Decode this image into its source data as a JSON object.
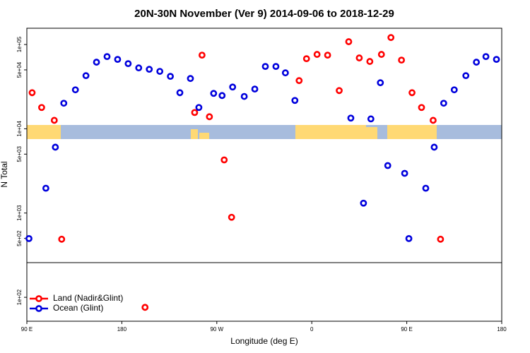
{
  "chart_data": {
    "type": "scatter",
    "title": "20N-30N November (Ver 9)   2014-09-06 to 2018-12-29",
    "x_label": "Longitude (deg E)",
    "y_label": "N Total",
    "log_y": true,
    "legend": "bottom-left",
    "xlim": [
      90,
      540
    ],
    "xticks": [
      {
        "value": 90,
        "label": "90 E"
      },
      {
        "value": 180,
        "label": "180"
      },
      {
        "value": 270,
        "label": "90 W"
      },
      {
        "value": 360,
        "label": "0"
      },
      {
        "value": 450,
        "label": "90 E"
      },
      {
        "value": 540,
        "label": "180"
      }
    ],
    "ylim": [
      52,
      156000
    ],
    "yticks": [
      {
        "value": 100,
        "label": "1e+02"
      },
      {
        "value": 500,
        "label": "5e+02"
      },
      {
        "value": 1000,
        "label": "1e+03"
      },
      {
        "value": 5000,
        "label": "5e+03"
      },
      {
        "value": 10000,
        "label": "1e+04"
      },
      {
        "value": 50000,
        "label": "5e+04"
      },
      {
        "value": 100000,
        "label": "1e+05"
      }
    ],
    "series": [
      {
        "name": "Land (Nadir&Glint)",
        "color": "#ff0000",
        "x": [
          95,
          104,
          116,
          123,
          202,
          249,
          256,
          263,
          277,
          284,
          348,
          355,
          365,
          375,
          386,
          395,
          405,
          415,
          426,
          435,
          445,
          455,
          464,
          475,
          482
        ],
        "values": [
          26800,
          17900,
          12600,
          489,
          76,
          15600,
          74800,
          13900,
          4270,
          891,
          37300,
          67900,
          76300,
          74800,
          28400,
          108000,
          69300,
          62900,
          76300,
          121000,
          65300,
          26800,
          17900,
          12600,
          489
        ]
      },
      {
        "name": "Ocean (Glint)",
        "color": "#0000dd",
        "x": [
          92,
          108,
          117,
          125,
          136,
          146,
          156,
          166,
          176,
          186,
          196,
          206,
          216,
          226,
          235,
          245,
          253,
          267,
          275,
          285,
          296,
          306,
          316,
          326,
          335,
          344,
          397,
          409,
          416,
          425,
          432,
          448,
          452,
          468,
          476,
          485,
          495,
          506,
          516,
          525,
          535
        ],
        "values": [
          498,
          1970,
          6050,
          20100,
          29000,
          42700,
          61700,
          71900,
          66600,
          59300,
          52800,
          50800,
          48000,
          41900,
          26800,
          39500,
          17900,
          26300,
          24800,
          31300,
          24200,
          29600,
          54900,
          54900,
          46100,
          21700,
          13400,
          1310,
          13100,
          35200,
          3660,
          2960,
          498,
          1970,
          6050,
          20100,
          29000,
          42700,
          61700,
          71900,
          66600
        ]
      }
    ]
  }
}
